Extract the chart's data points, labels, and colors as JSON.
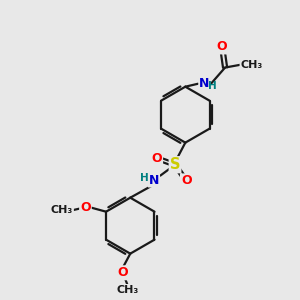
{
  "bg_color": "#e8e8e8",
  "bond_color": "#1a1a1a",
  "bond_width": 1.6,
  "atom_colors": {
    "O": "#ff0000",
    "N": "#0000cd",
    "S": "#cccc00",
    "H": "#008080",
    "C": "#1a1a1a"
  },
  "font_size": 8.5,
  "fig_size": [
    3.0,
    3.0
  ],
  "dpi": 100,
  "xlim": [
    0,
    10
  ],
  "ylim": [
    0,
    10
  ]
}
